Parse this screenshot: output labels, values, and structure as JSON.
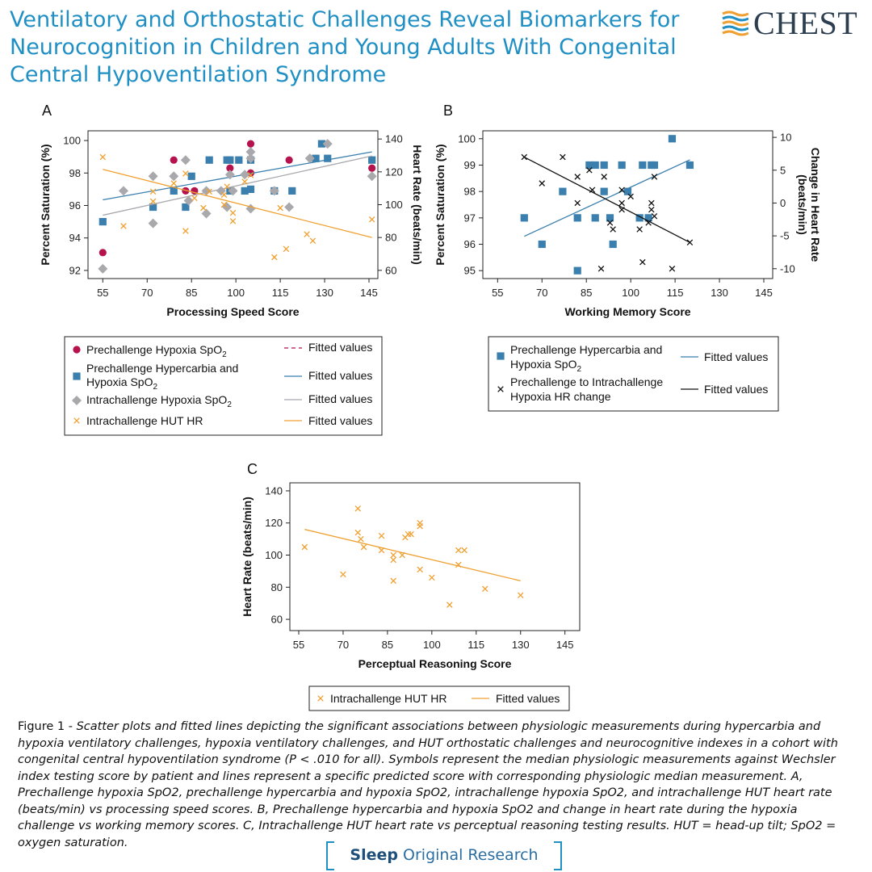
{
  "header": {
    "title": "Ventilatory and Orthostatic Challenges Reveal Biomarkers for Neurocognition in Children and Young Adults With Congenital Central Hypoventilation Syndrome",
    "logo_text": "CHEST",
    "logo_icon": "chest-stripes-logo"
  },
  "colors": {
    "title": "#1f8fc4",
    "magenta": "#b5124e",
    "blue": "#3a7fad",
    "gray": "#a8a8ad",
    "orange": "#f0a030",
    "black": "#111111"
  },
  "chart_data": [
    {
      "panel": "A",
      "type": "scatter",
      "xlabel": "Processing Speed Score",
      "ylabel": "Percent Saturation (%)",
      "ylabel2": "Heart Rate (beats/min)",
      "xlim": [
        50,
        148
      ],
      "ylim": [
        91.5,
        100.6
      ],
      "ylim2": [
        55,
        145
      ],
      "xticks": [
        55,
        70,
        85,
        100,
        115,
        130,
        145
      ],
      "yticks": [
        92,
        94,
        96,
        98,
        100
      ],
      "yticks2": [
        60,
        80,
        100,
        120,
        140
      ],
      "series": [
        {
          "name": "Prechallenge Hypoxia SpO₂",
          "marker": "circle",
          "color": "#b5124e",
          "axis": "left",
          "points": [
            [
              55,
              93.1
            ],
            [
              79,
              98.8
            ],
            [
              83,
              96.9
            ],
            [
              86,
              96.9
            ],
            [
              98,
              98.3
            ],
            [
              105,
              99.8
            ],
            [
              105,
              98
            ],
            [
              118,
              98.8
            ],
            [
              146,
              98.3
            ]
          ],
          "fit": {
            "label": "Fitted values",
            "style": "dashed",
            "x": [],
            "y": []
          }
        },
        {
          "name": "Prechallenge Hypercarbia and Hypoxia SpO₂",
          "marker": "square",
          "color": "#3a7fad",
          "axis": "left",
          "points": [
            [
              55,
              95
            ],
            [
              72,
              95.9
            ],
            [
              79,
              96.9
            ],
            [
              83,
              95.9
            ],
            [
              85,
              97.8
            ],
            [
              91,
              98.8
            ],
            [
              97,
              98.8
            ],
            [
              98,
              96.9
            ],
            [
              98,
              98.8
            ],
            [
              101,
              98.8
            ],
            [
              103,
              96.9
            ],
            [
              105,
              97
            ],
            [
              105,
              98.8
            ],
            [
              113,
              96.9
            ],
            [
              119,
              96.9
            ],
            [
              127,
              98.9
            ],
            [
              129,
              99.8
            ],
            [
              131,
              98.9
            ],
            [
              146,
              98.8
            ]
          ],
          "fit": {
            "label": "Fitted values",
            "style": "solid",
            "x": [
              55,
              146
            ],
            "y": [
              96.35,
              99.3
            ]
          }
        },
        {
          "name": "Intrachallenge Hypoxia SpO₂",
          "marker": "diamond",
          "color": "#a8a8ad",
          "axis": "left",
          "points": [
            [
              55,
              92.1
            ],
            [
              62,
              96.9
            ],
            [
              72,
              97.8
            ],
            [
              72,
              94.9
            ],
            [
              79,
              97.8
            ],
            [
              83,
              98.8
            ],
            [
              84,
              96.3
            ],
            [
              90,
              96.9
            ],
            [
              90,
              95.5
            ],
            [
              95,
              96.9
            ],
            [
              98,
              97.9
            ],
            [
              97,
              95.9
            ],
            [
              99,
              96.9
            ],
            [
              103,
              97.9
            ],
            [
              105,
              95.8
            ],
            [
              105,
              98.9
            ],
            [
              105,
              99.3
            ],
            [
              113,
              96.9
            ],
            [
              118,
              95.9
            ],
            [
              125,
              98.9
            ],
            [
              131,
              99.8
            ],
            [
              146,
              97.8
            ]
          ],
          "fit": {
            "label": "Fitted values",
            "style": "solid",
            "x": [
              55,
              146
            ],
            "y": [
              95.4,
              99.05
            ]
          }
        },
        {
          "name": "Intrachallenge HUT HR",
          "marker": "x",
          "color": "#f0a030",
          "axis": "right",
          "points": [
            [
              55,
              129
            ],
            [
              62,
              87
            ],
            [
              72,
              108
            ],
            [
              72,
              102
            ],
            [
              79,
              113
            ],
            [
              83,
              119
            ],
            [
              83,
              84
            ],
            [
              86,
              104
            ],
            [
              89,
              98
            ],
            [
              91,
              108
            ],
            [
              96,
              106
            ],
            [
              96,
              100
            ],
            [
              97,
              111
            ],
            [
              99,
              95
            ],
            [
              99,
              90
            ],
            [
              103,
              114
            ],
            [
              105,
              118
            ],
            [
              113,
              68
            ],
            [
              115,
              98
            ],
            [
              117,
              73
            ],
            [
              124,
              82
            ],
            [
              126,
              78
            ],
            [
              146,
              91
            ]
          ],
          "fit": {
            "label": "Fitted values",
            "style": "solid",
            "x": [
              55,
              146
            ],
            "y": [
              121.5,
              80
            ]
          }
        }
      ]
    },
    {
      "panel": "B",
      "type": "scatter",
      "xlabel": "Working Memory Score",
      "ylabel": "Percent Saturation (%)",
      "ylabel2": "Change in Heart Rate (beats/min)",
      "xlim": [
        50,
        148
      ],
      "ylim": [
        94.7,
        100.3
      ],
      "ylim2": [
        -11.5,
        11
      ],
      "xticks": [
        55,
        70,
        85,
        100,
        115,
        130,
        145
      ],
      "yticks": [
        95,
        96,
        97,
        98,
        99,
        100
      ],
      "yticks2": [
        -10,
        -5,
        0,
        5,
        10
      ],
      "series": [
        {
          "name": "Prechallenge Hypercarbia and Hypoxia SpO₂",
          "marker": "square",
          "color": "#3a7fad",
          "axis": "left",
          "points": [
            [
              64,
              97
            ],
            [
              70,
              96
            ],
            [
              77,
              98
            ],
            [
              82,
              97
            ],
            [
              82,
              95
            ],
            [
              86,
              99
            ],
            [
              88,
              99
            ],
            [
              88,
              97
            ],
            [
              91,
              98
            ],
            [
              91,
              99
            ],
            [
              93,
              97
            ],
            [
              94,
              96
            ],
            [
              97,
              99
            ],
            [
              99,
              98
            ],
            [
              103,
              97
            ],
            [
              104,
              99
            ],
            [
              106,
              97
            ],
            [
              107,
              99
            ],
            [
              108,
              99
            ],
            [
              114,
              100
            ],
            [
              120,
              99
            ]
          ],
          "fit": {
            "label": "Fitted values",
            "style": "solid",
            "x": [
              64,
              120
            ],
            "y": [
              96.3,
              99.2
            ]
          }
        },
        {
          "name": "Prechallenge to Intrachallenge Hypoxia HR change",
          "marker": "x",
          "color": "#111111",
          "axis": "right",
          "points": [
            [
              64,
              7
            ],
            [
              70,
              3
            ],
            [
              77,
              7
            ],
            [
              82,
              0
            ],
            [
              82,
              4
            ],
            [
              86,
              5
            ],
            [
              87,
              2
            ],
            [
              90,
              -10
            ],
            [
              91,
              4
            ],
            [
              93,
              -3
            ],
            [
              94,
              -4
            ],
            [
              97,
              2
            ],
            [
              97,
              -1
            ],
            [
              97,
              0
            ],
            [
              100,
              1
            ],
            [
              103,
              -4
            ],
            [
              104,
              -9
            ],
            [
              106,
              -3
            ],
            [
              107,
              -1
            ],
            [
              107,
              0
            ],
            [
              108,
              4
            ],
            [
              108,
              -2
            ],
            [
              114,
              -10
            ],
            [
              120,
              -6
            ]
          ],
          "fit": {
            "label": "Fitted values",
            "style": "solid",
            "x": [
              64,
              120
            ],
            "y": [
              7,
              -6
            ]
          }
        }
      ]
    },
    {
      "panel": "C",
      "type": "scatter",
      "xlabel": "Perceptual Reasoning Score",
      "ylabel": "Heart Rate (beats/min)",
      "xlim": [
        52,
        150
      ],
      "ylim": [
        53,
        145
      ],
      "xticks": [
        55,
        70,
        85,
        100,
        115,
        130,
        145
      ],
      "yticks": [
        60,
        80,
        100,
        120,
        140
      ],
      "series": [
        {
          "name": "Intrachallenge HUT HR",
          "marker": "x",
          "color": "#f0a030",
          "axis": "left",
          "points": [
            [
              57,
              105
            ],
            [
              70,
              88
            ],
            [
              75,
              129
            ],
            [
              75,
              114
            ],
            [
              76,
              110
            ],
            [
              77,
              105
            ],
            [
              83,
              112
            ],
            [
              83,
              103
            ],
            [
              87,
              100
            ],
            [
              87,
              97
            ],
            [
              87,
              84
            ],
            [
              90,
              100
            ],
            [
              91,
              111
            ],
            [
              92,
              113
            ],
            [
              93,
              113
            ],
            [
              96,
              120
            ],
            [
              96,
              118
            ],
            [
              96,
              91
            ],
            [
              100,
              86
            ],
            [
              106,
              69
            ],
            [
              109,
              103
            ],
            [
              109,
              94
            ],
            [
              111,
              103
            ],
            [
              118,
              79
            ],
            [
              130,
              75
            ]
          ],
          "fit": {
            "label": "Fitted values",
            "style": "solid",
            "x": [
              57,
              130
            ],
            "y": [
              116,
              84
            ]
          }
        }
      ]
    }
  ],
  "legends": {
    "a": [
      {
        "label": "Prechallenge Hypoxia SpO",
        "sub": "2",
        "fit": "Fitted values"
      },
      {
        "label": "Prechallenge Hypercarbia and",
        "label2": "Hypoxia SpO",
        "sub": "2",
        "fit": "Fitted values"
      },
      {
        "label": "Intrachallenge Hypoxia SpO",
        "sub": "2",
        "fit": "Fitted values"
      },
      {
        "label": "Intrachallenge HUT HR",
        "fit": "Fitted values"
      }
    ],
    "b": [
      {
        "label": "Prechallenge Hypercarbia and",
        "label2": "Hypoxia SpO",
        "sub": "2",
        "fit": "Fitted values"
      },
      {
        "label": "Prechallenge to Intrachallenge",
        "label2": "Hypoxia HR change",
        "fit": "Fitted values"
      }
    ],
    "c": [
      {
        "label": "Intrachallenge HUT HR",
        "fit": "Fitted values"
      }
    ]
  },
  "caption": {
    "lead": "Figure 1 - ",
    "body": "Scatter plots and fitted lines depicting the significant associations between physiologic measurements during hypercarbia and hypoxia ventilatory challenges, hypoxia ventilatory challenges, and HUT orthostatic challenges and neurocognitive indexes in a cohort with congenital central hypoventilation syndrome (P < .010 for all). Symbols represent the median physiologic measurements against Wechsler index testing score by patient and lines represent a specific predicted score with corresponding physiologic median measurement. A, Prechallenge hypoxia SpO2, prechallenge hypercarbia and hypoxia SpO2, intrachallenge hypoxia SpO2, and intrachallenge HUT heart rate (beats/min) vs processing speed scores. B, Prechallenge hypercarbia and hypoxia SpO2 and change in heart rate during the hypoxia challenge vs working memory scores. C, Intrachallenge HUT heart rate vs perceptual reasoning testing results. HUT = head-up tilt; SpO2 = oxygen saturation."
  },
  "footer": {
    "bold": "Sleep",
    "rest": "Original Research"
  }
}
